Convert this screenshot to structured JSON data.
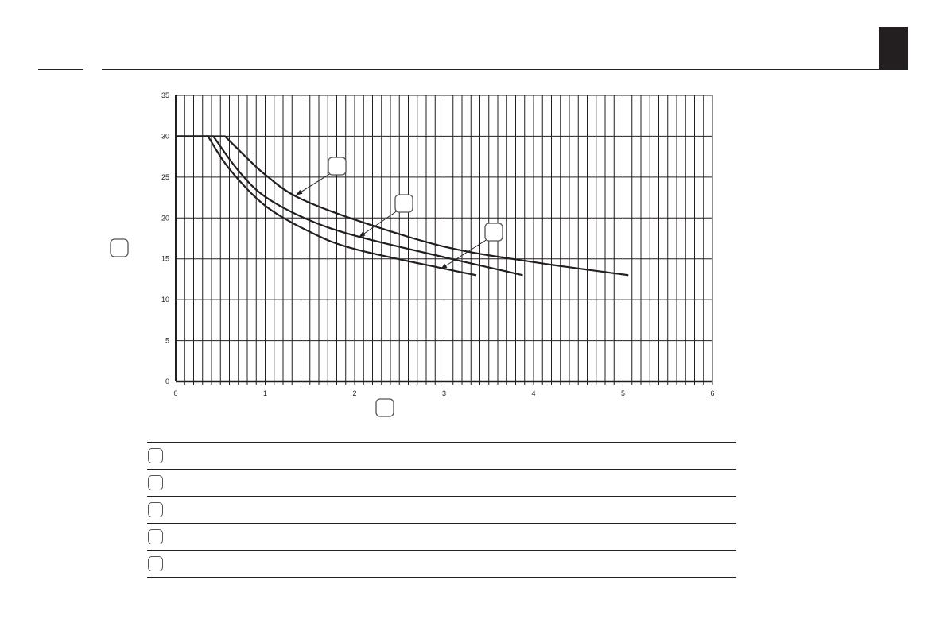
{
  "chart_data": {
    "type": "line",
    "title": "",
    "xlabel": "",
    "ylabel": "",
    "xlim": [
      0,
      6
    ],
    "ylim": [
      0,
      35
    ],
    "x_ticks": [
      "0",
      "1",
      "2",
      "3",
      "4",
      "5",
      "6"
    ],
    "y_ticks": [
      "0",
      "5",
      "10",
      "15",
      "20",
      "25",
      "30",
      "35"
    ],
    "grid": {
      "vertical_every": 0.1,
      "horizontal_every": 5
    },
    "legend": "table below chart, labels blank",
    "series": [
      {
        "x": [
          0,
          0.55,
          0.8,
          1.0,
          1.35,
          2.0,
          3.0,
          4.0,
          5.06
        ],
        "y": [
          30,
          30,
          27.3,
          25.3,
          22.6,
          19.8,
          16.5,
          14.6,
          13.0
        ]
      },
      {
        "x": [
          0,
          0.42,
          0.7,
          1.0,
          1.5,
          2.05,
          3.0,
          3.88
        ],
        "y": [
          30,
          30,
          25.8,
          22.6,
          19.7,
          17.7,
          15.2,
          13.0
        ]
      },
      {
        "x": [
          0,
          0.36,
          0.6,
          1.0,
          1.5,
          2.0,
          3.0,
          3.36
        ],
        "y": [
          30,
          30,
          26.0,
          21.5,
          18.3,
          16.2,
          13.8,
          13.0
        ]
      }
    ],
    "line_color": "#231f20"
  },
  "legend_rows": 5
}
